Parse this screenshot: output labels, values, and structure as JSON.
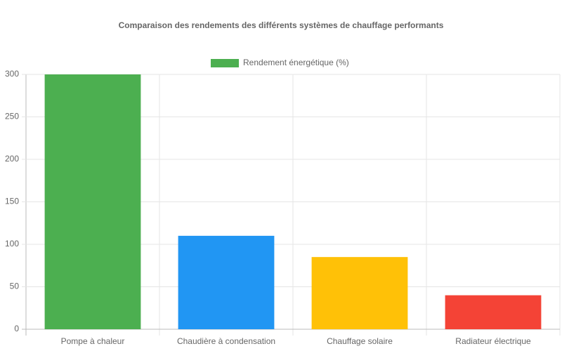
{
  "chart_data": {
    "type": "bar",
    "title": "Comparaison des rendements des différents systèmes de chauffage performants",
    "categories": [
      "Pompe à chaleur",
      "Chaudière à condensation",
      "Chauffage solaire",
      "Radiateur électrique"
    ],
    "series": [
      {
        "name": "Rendement énergétique (%)",
        "color": "#4caf50",
        "colors": [
          "#4caf50",
          "#2196f3",
          "#ffc107",
          "#f44336"
        ],
        "values": [
          300,
          110,
          85,
          40
        ]
      }
    ],
    "ylim": [
      0,
      300
    ],
    "yticks": [
      0,
      50,
      100,
      150,
      200,
      250,
      300
    ],
    "grid": true,
    "legend": "top"
  }
}
